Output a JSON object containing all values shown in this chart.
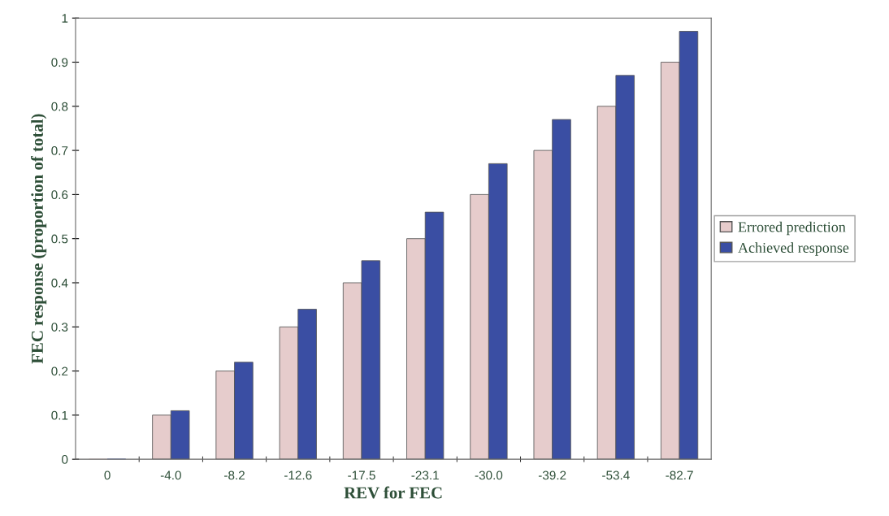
{
  "chart_data": {
    "type": "bar",
    "xlabel": "REV for FEC",
    "ylabel": "FEC response (proportion of total)",
    "categories": [
      "0",
      "-4.0",
      "-8.2",
      "-12.6",
      "-17.5",
      "-23.1",
      "-30.0",
      "-39.2",
      "-53.4",
      "-82.7"
    ],
    "series": [
      {
        "name": "Errored prediction",
        "color": "#e6cccc",
        "values": [
          0,
          0.1,
          0.2,
          0.3,
          0.4,
          0.5,
          0.6,
          0.7,
          0.8,
          0.9
        ]
      },
      {
        "name": "Achieved response",
        "color": "#3a4ea3",
        "values": [
          0,
          0.11,
          0.22,
          0.34,
          0.45,
          0.56,
          0.67,
          0.77,
          0.87,
          0.97
        ]
      }
    ],
    "ylim": [
      0,
      1
    ],
    "yticks": [
      0,
      0.1,
      0.2,
      0.3,
      0.4,
      0.5,
      0.6,
      0.7,
      0.8,
      0.9,
      1
    ],
    "grid": false,
    "legend": "right"
  }
}
